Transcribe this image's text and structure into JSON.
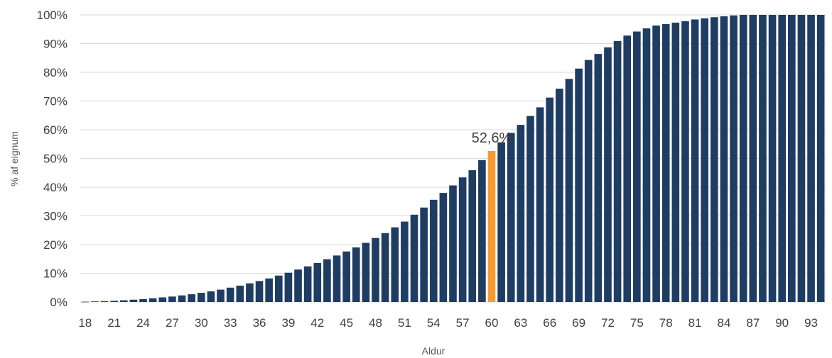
{
  "chart_data": {
    "type": "bar",
    "title": "",
    "xlabel": "Aldur",
    "ylabel": "% af eignum",
    "ylim": [
      0,
      100
    ],
    "y_ticks": [
      "0%",
      "10%",
      "20%",
      "30%",
      "40%",
      "50%",
      "60%",
      "70%",
      "80%",
      "90%",
      "100%"
    ],
    "x_tick_labels": [
      "18",
      "21",
      "24",
      "27",
      "30",
      "33",
      "36",
      "39",
      "42",
      "45",
      "48",
      "51",
      "54",
      "57",
      "60",
      "63",
      "66",
      "69",
      "72",
      "75",
      "78",
      "81",
      "84",
      "87",
      "90",
      "93"
    ],
    "categories": [
      18,
      19,
      20,
      21,
      22,
      23,
      24,
      25,
      26,
      27,
      28,
      29,
      30,
      31,
      32,
      33,
      34,
      35,
      36,
      37,
      38,
      39,
      40,
      41,
      42,
      43,
      44,
      45,
      46,
      47,
      48,
      49,
      50,
      51,
      52,
      53,
      54,
      55,
      56,
      57,
      58,
      59,
      60,
      61,
      62,
      63,
      64,
      65,
      66,
      67,
      68,
      69,
      70,
      71,
      72,
      73,
      74,
      75,
      76,
      77,
      78,
      79,
      80,
      81,
      82,
      83,
      84,
      85,
      86,
      87,
      88,
      89,
      90,
      91,
      92,
      93,
      94
    ],
    "values": [
      0.1,
      0.2,
      0.3,
      0.4,
      0.6,
      0.8,
      1.0,
      1.3,
      1.6,
      1.9,
      2.3,
      2.7,
      3.2,
      3.7,
      4.3,
      5.0,
      5.7,
      6.5,
      7.3,
      8.2,
      9.2,
      10.2,
      11.3,
      12.4,
      13.6,
      14.9,
      16.2,
      17.6,
      19.0,
      20.6,
      22.3,
      24.0,
      26.0,
      28.0,
      30.4,
      32.9,
      35.6,
      38.0,
      40.6,
      43.4,
      45.9,
      49.4,
      52.6,
      55.6,
      58.9,
      61.7,
      64.8,
      67.8,
      71.2,
      74.3,
      77.7,
      81.3,
      84.3,
      86.4,
      88.7,
      90.9,
      92.8,
      94.2,
      95.3,
      96.3,
      96.8,
      97.3,
      97.8,
      98.4,
      98.8,
      99.2,
      99.5,
      99.8,
      100,
      100,
      100,
      100,
      100,
      100,
      100,
      100,
      100
    ],
    "highlight": {
      "category": 60,
      "label": "52,6%",
      "color": "#f79a34"
    },
    "bar_color": "#1f3d63",
    "grid": true,
    "legend": "none"
  }
}
